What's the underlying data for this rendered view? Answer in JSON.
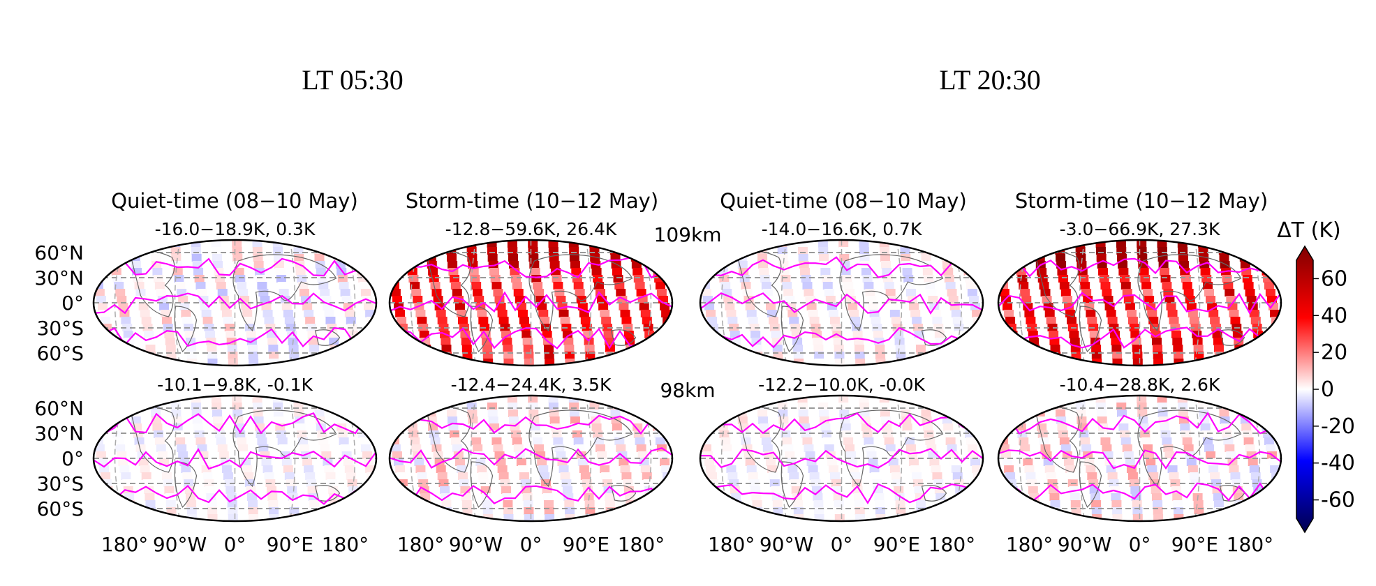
{
  "lt_titles": [
    "LT 05:30",
    "LT 20:30"
  ],
  "column_titles": [
    "Quiet-time (08−10 May)",
    "Storm-time (10−12 May)",
    "Quiet-time (08−10 May)",
    "Storm-time (10−12 May)"
  ],
  "altitude_labels": [
    "109km",
    "98km"
  ],
  "lat_ticks": [
    "60°N",
    "30°N",
    "0°",
    "30°S",
    "60°S"
  ],
  "lon_ticks": [
    "180°",
    "90°W",
    "0°",
    "90°E",
    "180°"
  ],
  "colorbar": {
    "label": "ΔT (K)",
    "ticks": [
      "60",
      "40",
      "20",
      "0",
      "-20",
      "-40",
      "-60"
    ],
    "vmin": -70,
    "vmax": 70,
    "colormap": "seismic",
    "colors": [
      "#00004c",
      "#0000ff",
      "#ffffff",
      "#ff0000",
      "#800000"
    ]
  },
  "contour_color": "#ff00ff",
  "chart_data": [
    {
      "type": "heatmap",
      "lt": "LT 05:30",
      "period": "Quiet-time (08−10 May)",
      "altitude": "109km",
      "stats": "-16.0−18.9K, 0.3K",
      "min": -16.0,
      "max": 18.9,
      "mean": 0.3
    },
    {
      "type": "heatmap",
      "lt": "LT 05:30",
      "period": "Storm-time (10−12 May)",
      "altitude": "109km",
      "stats": "-12.8−59.6K, 26.4K",
      "min": -12.8,
      "max": 59.6,
      "mean": 26.4
    },
    {
      "type": "heatmap",
      "lt": "LT 20:30",
      "period": "Quiet-time (08−10 May)",
      "altitude": "109km",
      "stats": "-14.0−16.6K, 0.7K",
      "min": -14.0,
      "max": 16.6,
      "mean": 0.7
    },
    {
      "type": "heatmap",
      "lt": "LT 20:30",
      "period": "Storm-time (10−12 May)",
      "altitude": "109km",
      "stats": "-3.0−66.9K, 27.3K",
      "min": -3.0,
      "max": 66.9,
      "mean": 27.3
    },
    {
      "type": "heatmap",
      "lt": "LT 05:30",
      "period": "Quiet-time (08−10 May)",
      "altitude": "98km",
      "stats": "-10.1−9.8K, -0.1K",
      "min": -10.1,
      "max": 9.8,
      "mean": -0.1
    },
    {
      "type": "heatmap",
      "lt": "LT 05:30",
      "period": "Storm-time (10−12 May)",
      "altitude": "98km",
      "stats": "-12.4−24.4K, 3.5K",
      "min": -12.4,
      "max": 24.4,
      "mean": 3.5
    },
    {
      "type": "heatmap",
      "lt": "LT 20:30",
      "period": "Quiet-time (08−10 May)",
      "altitude": "98km",
      "stats": "-12.2−10.0K, -0.0K",
      "min": -12.2,
      "max": 10.0,
      "mean": -0.0
    },
    {
      "type": "heatmap",
      "lt": "LT 20:30",
      "period": "Storm-time (10−12 May)",
      "altitude": "98km",
      "stats": "-10.4−28.8K, 2.6K",
      "min": -10.4,
      "max": 28.8,
      "mean": 2.6
    }
  ]
}
